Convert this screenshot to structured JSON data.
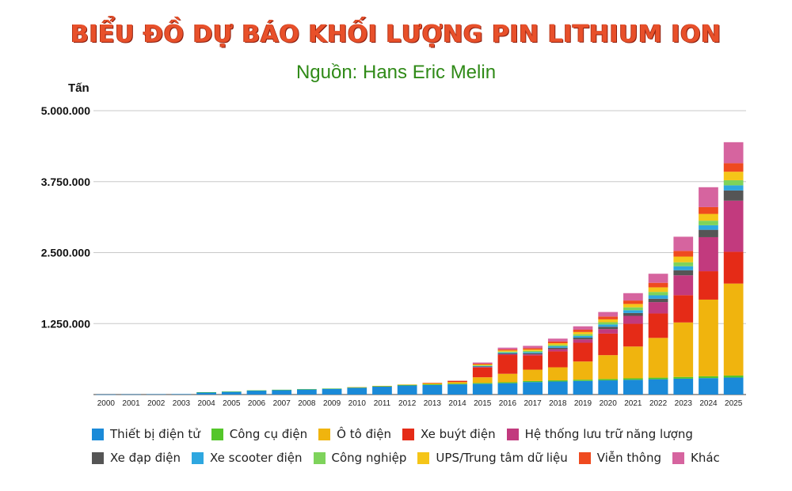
{
  "title": "BIỂU ĐỒ DỰ BÁO KHỐI LƯỢNG PIN LITHIUM ION",
  "subtitle": "Nguồn: Hans Eric Melin",
  "chart_data": {
    "type": "bar",
    "stacked": true,
    "ylabel": "Tấn",
    "ylim": [
      0,
      5000000
    ],
    "yticks": [
      0,
      1250000,
      2500000,
      3750000,
      5000000
    ],
    "ytick_labels": [
      "",
      "1.250.000",
      "2.500.000",
      "3.750.000",
      "5.000.000"
    ],
    "grid": true,
    "legend_position": "bottom",
    "categories": [
      "2000",
      "2001",
      "2002",
      "2003",
      "2004",
      "2005",
      "2006",
      "2007",
      "2008",
      "2009",
      "2010",
      "2011",
      "2012",
      "2013",
      "2014",
      "2015",
      "2016",
      "2017",
      "2018",
      "2019",
      "2020",
      "2021",
      "2022",
      "2023",
      "2024",
      "2025"
    ],
    "series": [
      {
        "name": "Thiết bị điện tử",
        "color": "#1a8ad8",
        "values": [
          2000,
          4000,
          6000,
          8000,
          40000,
          50000,
          70000,
          80000,
          90000,
          100000,
          120000,
          140000,
          160000,
          170000,
          180000,
          190000,
          200000,
          220000,
          230000,
          240000,
          250000,
          260000,
          270000,
          280000,
          290000,
          300000
        ]
      },
      {
        "name": "Công cụ điện",
        "color": "#54c62a",
        "values": [
          0,
          0,
          0,
          0,
          2000,
          3000,
          4000,
          5000,
          6000,
          7000,
          8000,
          9000,
          10000,
          11000,
          12000,
          14000,
          16000,
          18000,
          20000,
          22000,
          24000,
          26000,
          28000,
          30000,
          32000,
          35000
        ]
      },
      {
        "name": "Ô tô điện",
        "color": "#f0b40e",
        "values": [
          0,
          0,
          0,
          0,
          0,
          0,
          0,
          0,
          0,
          0,
          2000,
          4000,
          8000,
          20000,
          30000,
          100000,
          150000,
          200000,
          230000,
          320000,
          420000,
          560000,
          700000,
          960000,
          1350000,
          1620000
        ]
      },
      {
        "name": "Xe buýt điện",
        "color": "#e52b17",
        "values": [
          0,
          0,
          0,
          0,
          0,
          0,
          0,
          0,
          0,
          0,
          0,
          0,
          0,
          5000,
          20000,
          170000,
          330000,
          250000,
          280000,
          330000,
          380000,
          400000,
          430000,
          480000,
          500000,
          560000
        ]
      },
      {
        "name": "Hệ thống lưu trữ năng lượng",
        "color": "#c23a7e",
        "values": [
          0,
          0,
          0,
          0,
          0,
          0,
          0,
          0,
          0,
          0,
          0,
          0,
          0,
          0,
          0,
          10000,
          15000,
          20000,
          40000,
          60000,
          80000,
          140000,
          200000,
          350000,
          600000,
          900000
        ]
      },
      {
        "name": "Xe đạp điện",
        "color": "#555555",
        "values": [
          0,
          0,
          0,
          0,
          0,
          0,
          0,
          0,
          0,
          0,
          0,
          0,
          0,
          0,
          0,
          10000,
          15000,
          20000,
          25000,
          30000,
          40000,
          50000,
          60000,
          90000,
          130000,
          180000
        ]
      },
      {
        "name": "Xe scooter điện",
        "color": "#2ea7e0",
        "values": [
          0,
          0,
          0,
          0,
          0,
          0,
          0,
          0,
          0,
          0,
          0,
          0,
          0,
          0,
          0,
          10000,
          15000,
          20000,
          25000,
          30000,
          40000,
          50000,
          60000,
          70000,
          80000,
          90000
        ]
      },
      {
        "name": "Công nghiệp",
        "color": "#7ed35b",
        "values": [
          0,
          0,
          0,
          0,
          0,
          0,
          0,
          0,
          0,
          0,
          0,
          0,
          0,
          0,
          0,
          10000,
          15000,
          20000,
          25000,
          30000,
          40000,
          50000,
          60000,
          70000,
          80000,
          90000
        ]
      },
      {
        "name": "UPS/Trung tâm dữ liệu",
        "color": "#f5c518",
        "values": [
          0,
          0,
          0,
          0,
          0,
          0,
          0,
          0,
          0,
          0,
          0,
          0,
          0,
          0,
          0,
          15000,
          20000,
          25000,
          30000,
          40000,
          50000,
          60000,
          80000,
          100000,
          120000,
          150000
        ]
      },
      {
        "name": "Viễn thông",
        "color": "#ef4a1f",
        "values": [
          0,
          0,
          0,
          0,
          0,
          0,
          0,
          0,
          0,
          0,
          0,
          0,
          0,
          0,
          0,
          15000,
          20000,
          25000,
          30000,
          40000,
          50000,
          60000,
          80000,
          100000,
          120000,
          150000
        ]
      },
      {
        "name": "Khác",
        "color": "#d6649f",
        "values": [
          0,
          0,
          0,
          0,
          0,
          0,
          0,
          0,
          0,
          0,
          0,
          0,
          0,
          0,
          0,
          20000,
          30000,
          40000,
          50000,
          60000,
          80000,
          130000,
          160000,
          250000,
          350000,
          370000
        ]
      }
    ]
  }
}
